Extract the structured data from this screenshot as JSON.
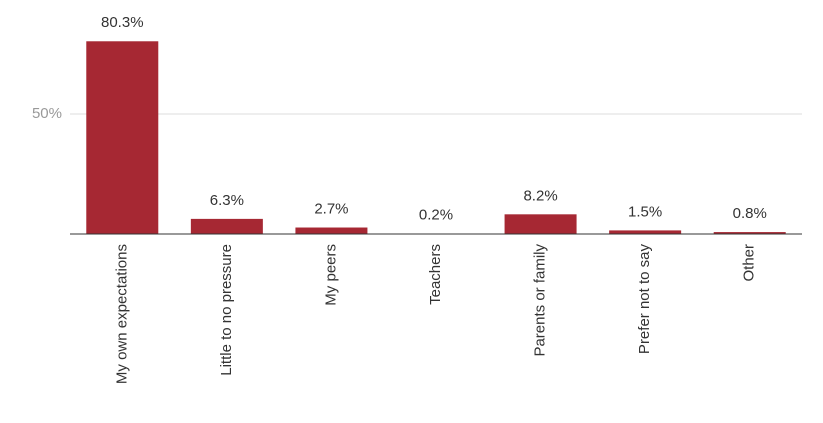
{
  "chart_data": {
    "type": "bar",
    "categories": [
      "My own expectations",
      "Little to no pressure",
      "My peers",
      "Teachers",
      "Parents or family",
      "Prefer not to say",
      "Other"
    ],
    "values": [
      80.3,
      6.3,
      2.7,
      0.2,
      8.2,
      1.5,
      0.8
    ],
    "value_labels": [
      "80.3%",
      "6.3%",
      "2.7%",
      "0.2%",
      "8.2%",
      "1.5%",
      "0.8%"
    ],
    "color": "#a62833",
    "ylim": [
      0,
      90
    ],
    "yticks": [
      {
        "value": 50,
        "label": "50%"
      }
    ],
    "grid": true
  }
}
